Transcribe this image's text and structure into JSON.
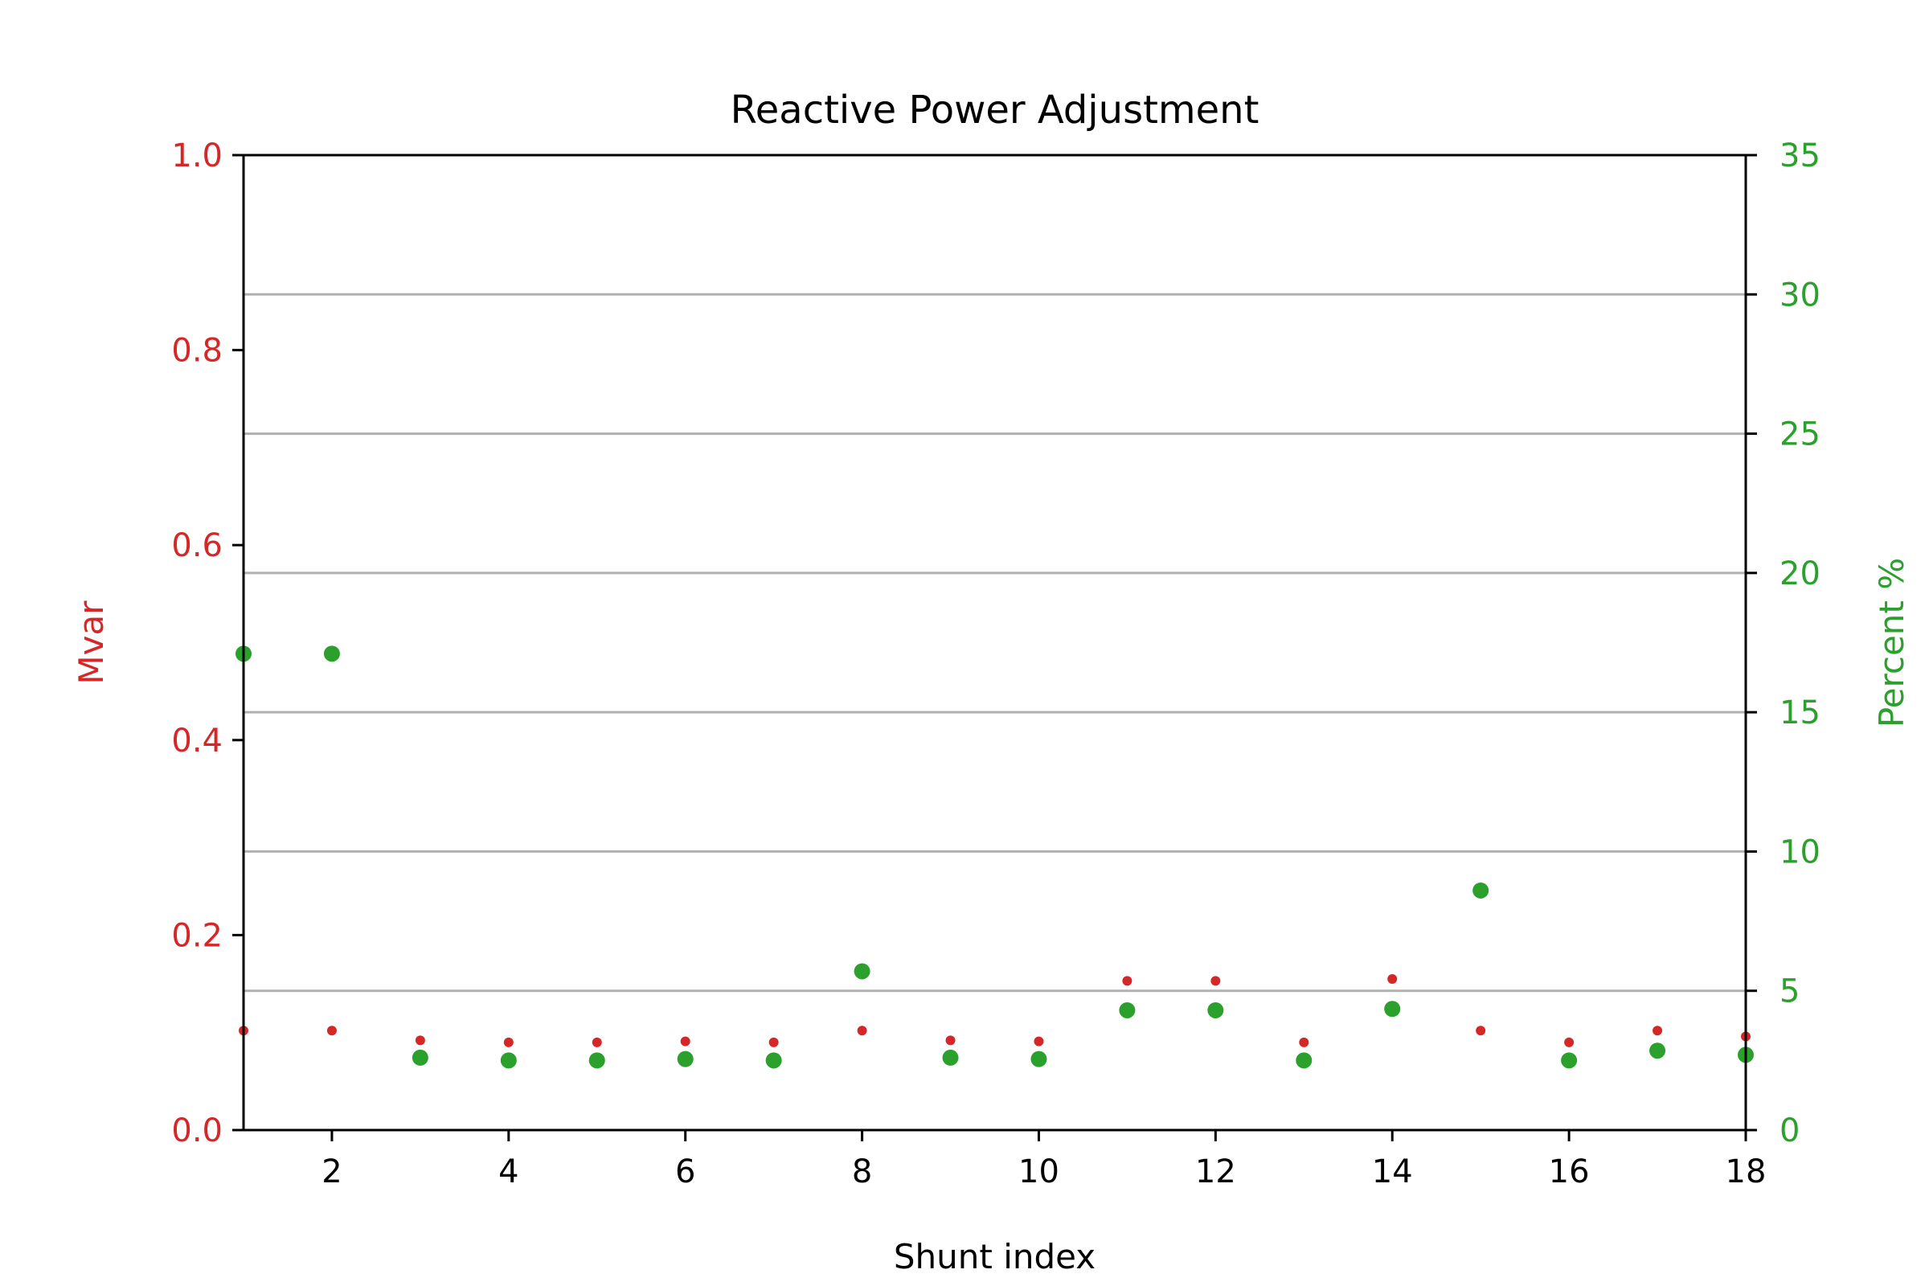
{
  "chart_data": {
    "type": "scatter",
    "title": "Reactive Power Adjustment",
    "xlabel": "Shunt index",
    "ylabel_left": "Mvar",
    "ylabel_right": "Percent %",
    "xlim": [
      1,
      18
    ],
    "ylim_left": [
      0,
      1.0
    ],
    "ylim_right": [
      0,
      35
    ],
    "x_ticks": [
      2,
      4,
      6,
      8,
      10,
      12,
      14,
      16,
      18
    ],
    "y_left_ticks": [
      "0.0",
      "0.2",
      "0.4",
      "0.6",
      "0.8",
      "1.0"
    ],
    "y_right_ticks": [
      "0",
      "5",
      "10",
      "15",
      "20",
      "25",
      "30",
      "35"
    ],
    "grid": "horizontal lines at right-axis ticks",
    "colors": {
      "left": "#d62728",
      "right": "#2ca02c",
      "grid": "#b0b0b0",
      "axis": "#000000"
    },
    "series": [
      {
        "axis": "left",
        "marker": "small-dot",
        "x": [
          1,
          2,
          3,
          4,
          5,
          6,
          7,
          8,
          9,
          10,
          11,
          12,
          13,
          14,
          15,
          16,
          17,
          18
        ],
        "values": [
          0.102,
          0.102,
          0.092,
          0.09,
          0.09,
          0.091,
          0.09,
          0.102,
          0.092,
          0.091,
          0.153,
          0.153,
          0.09,
          0.155,
          0.102,
          0.09,
          0.102,
          0.096
        ]
      },
      {
        "axis": "right",
        "marker": "large-dot",
        "x": [
          1,
          2,
          3,
          4,
          5,
          6,
          7,
          8,
          9,
          10,
          11,
          12,
          13,
          14,
          15,
          16,
          17,
          18
        ],
        "values": [
          17.1,
          17.1,
          2.6,
          2.5,
          2.5,
          2.55,
          2.5,
          5.7,
          2.6,
          2.55,
          4.3,
          4.3,
          2.5,
          4.35,
          8.6,
          2.5,
          2.85,
          2.7
        ]
      }
    ]
  }
}
